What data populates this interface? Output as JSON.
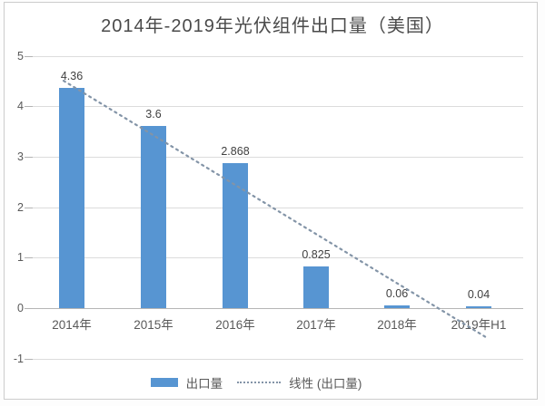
{
  "title": "2014年-2019年光伏组件出口量（美国）",
  "chart_data": {
    "type": "bar",
    "title": "2014年-2019年光伏组件出口量（美国）",
    "categories": [
      "2014年",
      "2015年",
      "2016年",
      "2017年",
      "2018年",
      "2019年H1"
    ],
    "series": [
      {
        "name": "出口量",
        "values": [
          4.36,
          3.6,
          2.868,
          0.825,
          0.06,
          0.04
        ]
      }
    ],
    "trendline": {
      "name": "线性 (出口量)",
      "style": "dotted",
      "based_on": "出口量"
    },
    "yticks": [
      "5",
      "4",
      "3",
      "2",
      "1",
      "0",
      "-1"
    ],
    "ylim": [
      -1,
      5
    ],
    "xlabel": "",
    "ylabel": "",
    "grid": true,
    "legend_position": "bottom",
    "colors": {
      "bar": "#5795D2",
      "trendline": "#8394A7",
      "grid": "#dcdcdc",
      "axis": "#b5b5b5",
      "tick_text": "#595959",
      "title_text": "#4a4a4a"
    }
  },
  "legend": {
    "items": [
      {
        "label": "出口量",
        "swatch": "bar"
      },
      {
        "label": "线性 (出口量)",
        "swatch": "dotted-line"
      }
    ]
  }
}
